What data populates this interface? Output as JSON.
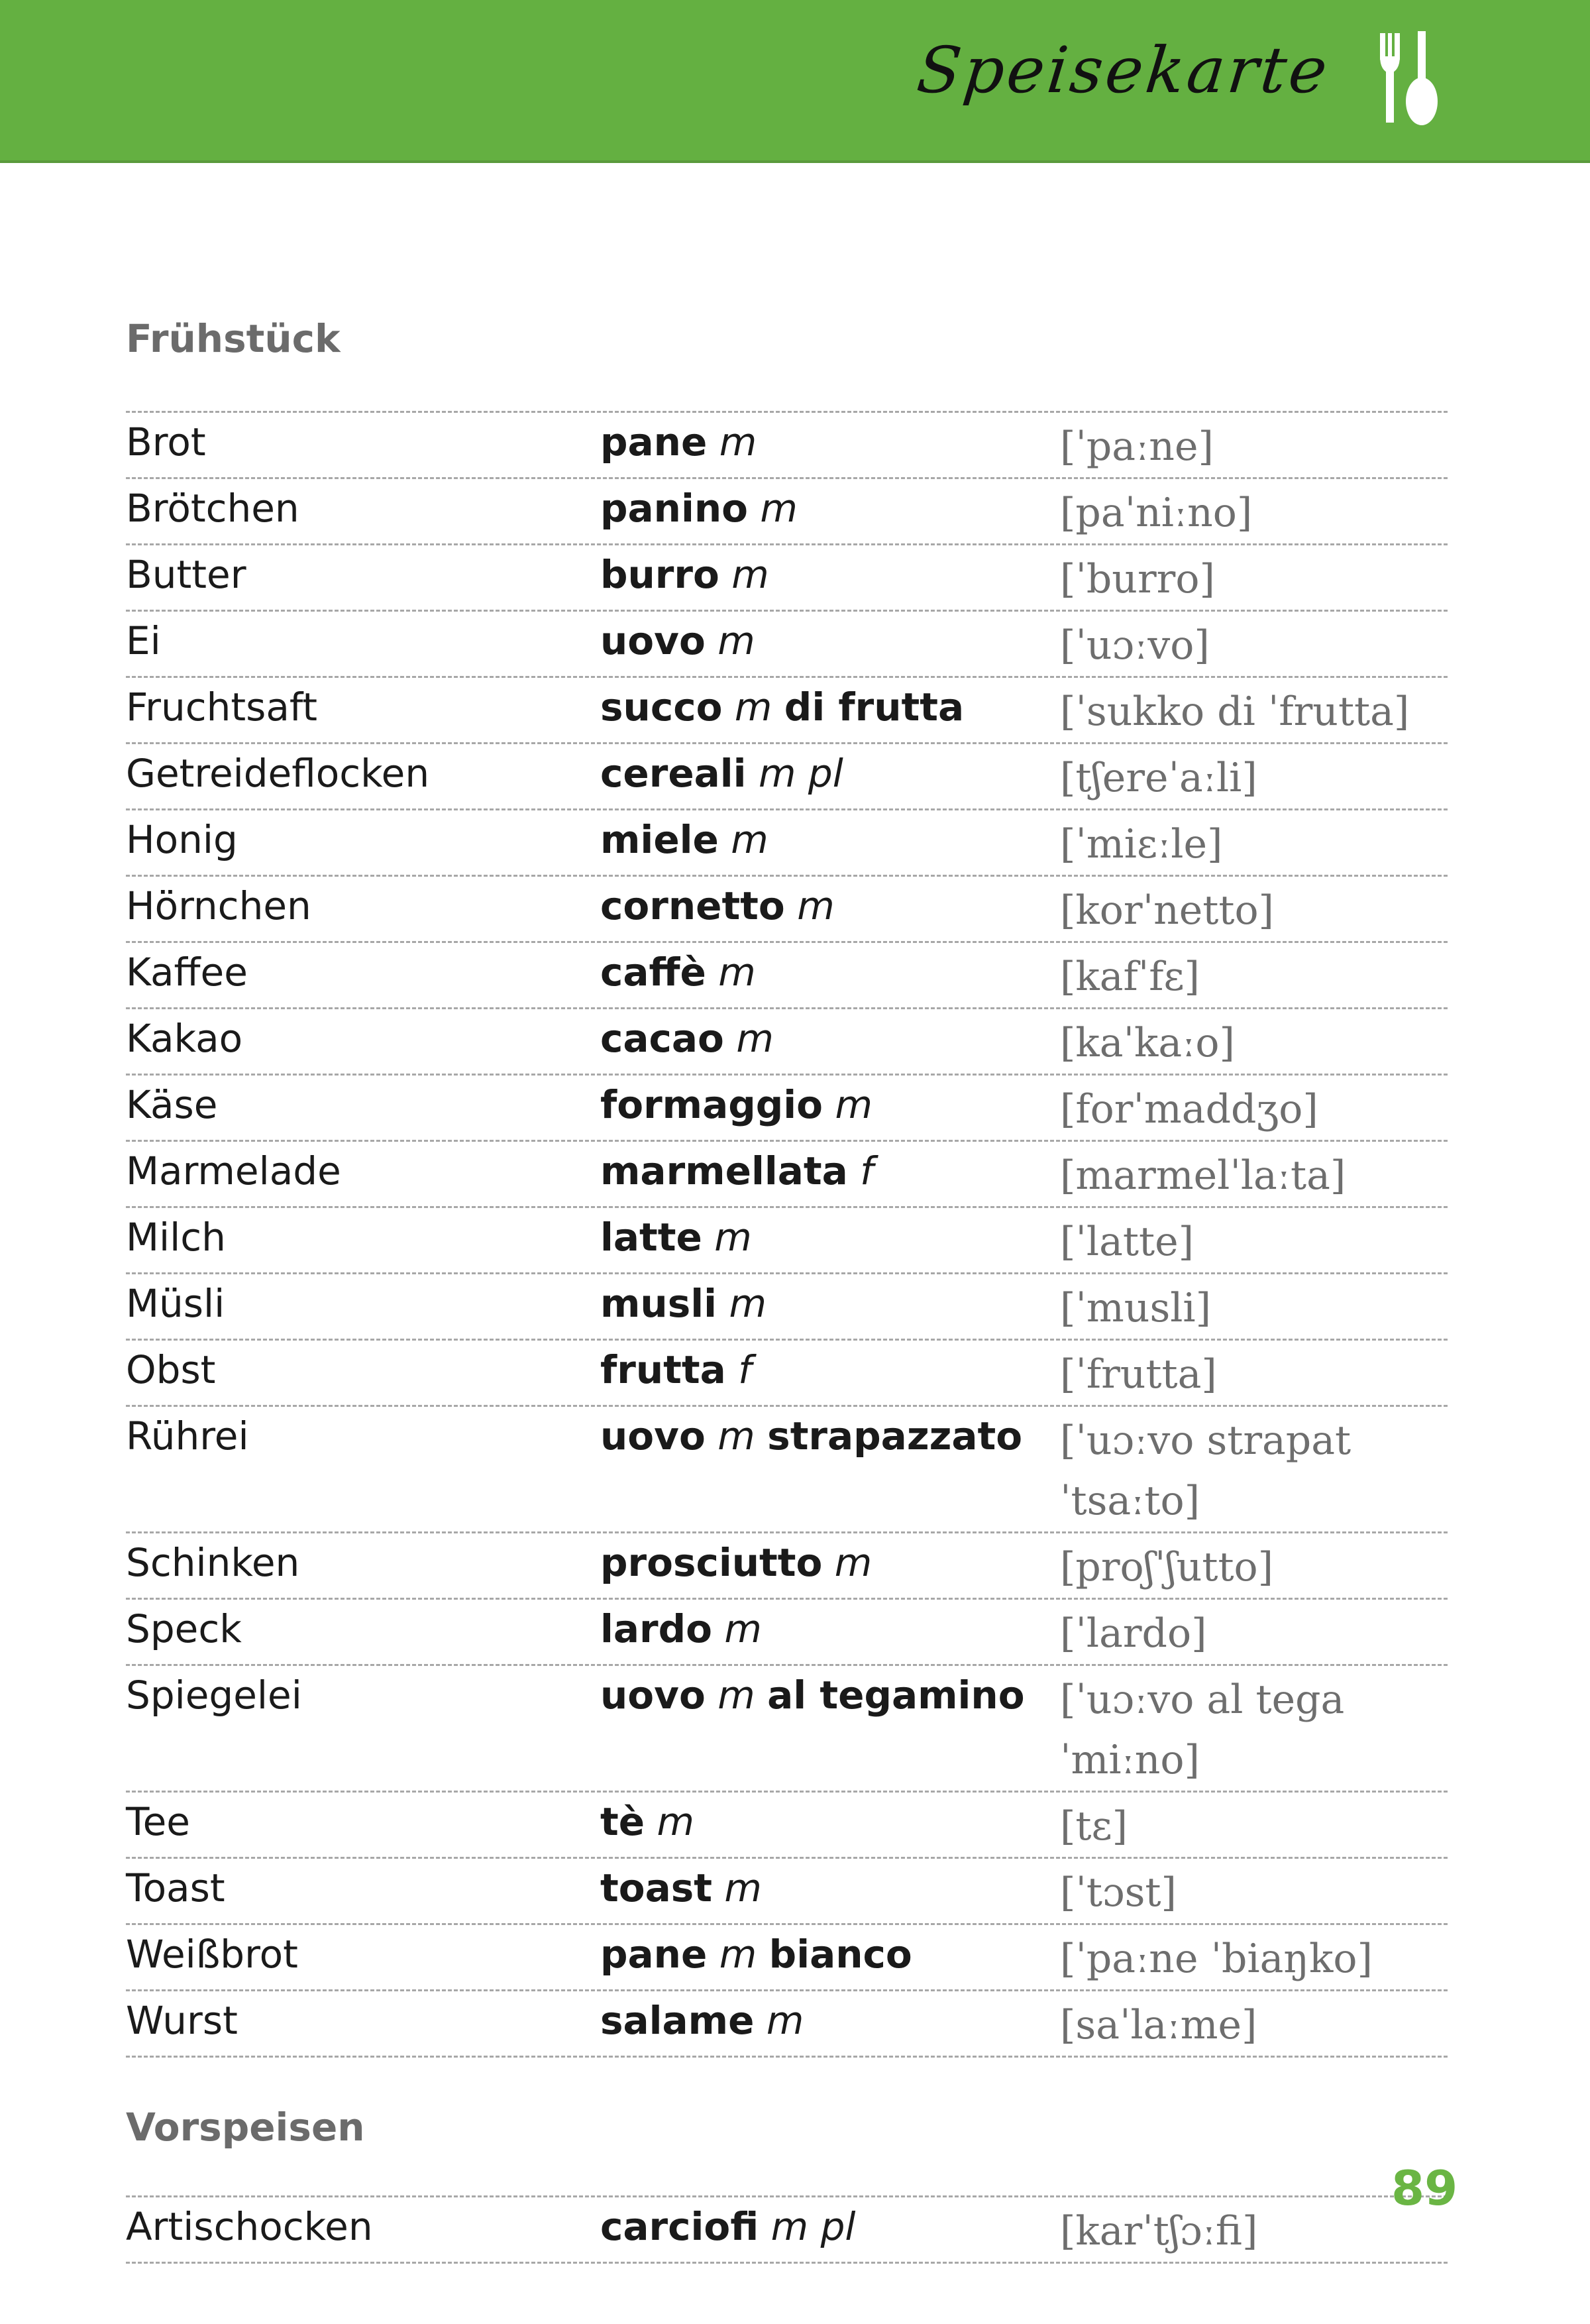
{
  "header": {
    "title": "Speisekarte",
    "icon": "fork-spoon-icon",
    "color": "#64b041"
  },
  "sections": [
    {
      "heading": "Frühstück",
      "rows": [
        {
          "de": "Brot",
          "it": [
            {
              "text": "pane",
              "style": "b"
            },
            {
              "text": " m",
              "style": "i"
            }
          ],
          "ph": "[ˈpaːne]"
        },
        {
          "de": "Brötchen",
          "it": [
            {
              "text": "panino",
              "style": "b"
            },
            {
              "text": " m",
              "style": "i"
            }
          ],
          "ph": "[paˈniːno]"
        },
        {
          "de": "Butter",
          "it": [
            {
              "text": "burro",
              "style": "b"
            },
            {
              "text": " m",
              "style": "i"
            }
          ],
          "ph": "[ˈburro]"
        },
        {
          "de": "Ei",
          "it": [
            {
              "text": "uovo",
              "style": "b"
            },
            {
              "text": " m",
              "style": "i"
            }
          ],
          "ph": "[ˈuɔːvo]"
        },
        {
          "de": "Fruchtsaft",
          "it": [
            {
              "text": "succo",
              "style": "b"
            },
            {
              "text": " m ",
              "style": "i"
            },
            {
              "text": "di frutta",
              "style": "b"
            }
          ],
          "ph": "[ˈsukko di ˈfrutta]"
        },
        {
          "de": "Getreideflocken",
          "it": [
            {
              "text": "cereali",
              "style": "b"
            },
            {
              "text": " m pl",
              "style": "i"
            }
          ],
          "ph": "[tʃereˈaːli]"
        },
        {
          "de": "Honig",
          "it": [
            {
              "text": "miele",
              "style": "b"
            },
            {
              "text": " m",
              "style": "i"
            }
          ],
          "ph": "[ˈmiɛːle]"
        },
        {
          "de": "Hörnchen",
          "it": [
            {
              "text": "cornetto",
              "style": "b"
            },
            {
              "text": " m",
              "style": "i"
            }
          ],
          "ph": "[korˈnetto]"
        },
        {
          "de": "Kaffee",
          "it": [
            {
              "text": "caffè",
              "style": "b"
            },
            {
              "text": " m",
              "style": "i"
            }
          ],
          "ph": "[kafˈfɛ]"
        },
        {
          "de": "Kakao",
          "it": [
            {
              "text": "cacao",
              "style": "b"
            },
            {
              "text": " m",
              "style": "i"
            }
          ],
          "ph": "[kaˈkaːo]"
        },
        {
          "de": "Käse",
          "it": [
            {
              "text": "formaggio",
              "style": "b"
            },
            {
              "text": " m",
              "style": "i"
            }
          ],
          "ph": "[forˈmaddʒo]"
        },
        {
          "de": "Marmelade",
          "it": [
            {
              "text": "marmellata",
              "style": "b"
            },
            {
              "text": " f",
              "style": "i"
            }
          ],
          "ph": "[marmelˈlaːta]"
        },
        {
          "de": "Milch",
          "it": [
            {
              "text": "latte",
              "style": "b"
            },
            {
              "text": " m",
              "style": "i"
            }
          ],
          "ph": "[ˈlatte]"
        },
        {
          "de": "Müsli",
          "it": [
            {
              "text": "musli",
              "style": "b"
            },
            {
              "text": " m",
              "style": "i"
            }
          ],
          "ph": "[ˈmusli]"
        },
        {
          "de": "Obst",
          "it": [
            {
              "text": "frutta",
              "style": "b"
            },
            {
              "text": " f",
              "style": "i"
            }
          ],
          "ph": "[ˈfrutta]"
        },
        {
          "de": "Rührei",
          "it": [
            {
              "text": "uovo",
              "style": "b"
            },
            {
              "text": " m ",
              "style": "i"
            },
            {
              "text": "strapazzato",
              "style": "b"
            }
          ],
          "ph": "[ˈuɔːvo strapatˈtsaːto]"
        },
        {
          "de": "Schinken",
          "it": [
            {
              "text": "prosciutto",
              "style": "b"
            },
            {
              "text": " m",
              "style": "i"
            }
          ],
          "ph": "[proʃˈʃutto]"
        },
        {
          "de": "Speck",
          "it": [
            {
              "text": "lardo",
              "style": "b"
            },
            {
              "text": " m",
              "style": "i"
            }
          ],
          "ph": "[ˈlardo]"
        },
        {
          "de": "Spiegelei",
          "it": [
            {
              "text": "uovo",
              "style": "b"
            },
            {
              "text": " m ",
              "style": "i"
            },
            {
              "text": "al tegamino",
              "style": "b"
            }
          ],
          "ph": "[ˈuɔːvo al tegaˈmiːno]"
        },
        {
          "de": "Tee",
          "it": [
            {
              "text": "tè",
              "style": "b"
            },
            {
              "text": " m",
              "style": "i"
            }
          ],
          "ph": "[tɛ]"
        },
        {
          "de": "Toast",
          "it": [
            {
              "text": "toast",
              "style": "b"
            },
            {
              "text": " m",
              "style": "i"
            }
          ],
          "ph": "[ˈtɔst]"
        },
        {
          "de": "Weißbrot",
          "it": [
            {
              "text": "pane",
              "style": "b"
            },
            {
              "text": " m ",
              "style": "i"
            },
            {
              "text": "bianco",
              "style": "b"
            }
          ],
          "ph": "[ˈpaːne ˈbiaŋko]"
        },
        {
          "de": "Wurst",
          "it": [
            {
              "text": "salame",
              "style": "b"
            },
            {
              "text": " m",
              "style": "i"
            }
          ],
          "ph": "[saˈlaːme]"
        }
      ]
    },
    {
      "heading": "Vorspeisen",
      "rows": [
        {
          "de": "Artischocken",
          "it": [
            {
              "text": "carciofi",
              "style": "b"
            },
            {
              "text": " m pl",
              "style": "i"
            }
          ],
          "ph": "[karˈtʃɔːfi]"
        }
      ]
    }
  ],
  "page_number": "89",
  "page_number_color": "#6ab544"
}
